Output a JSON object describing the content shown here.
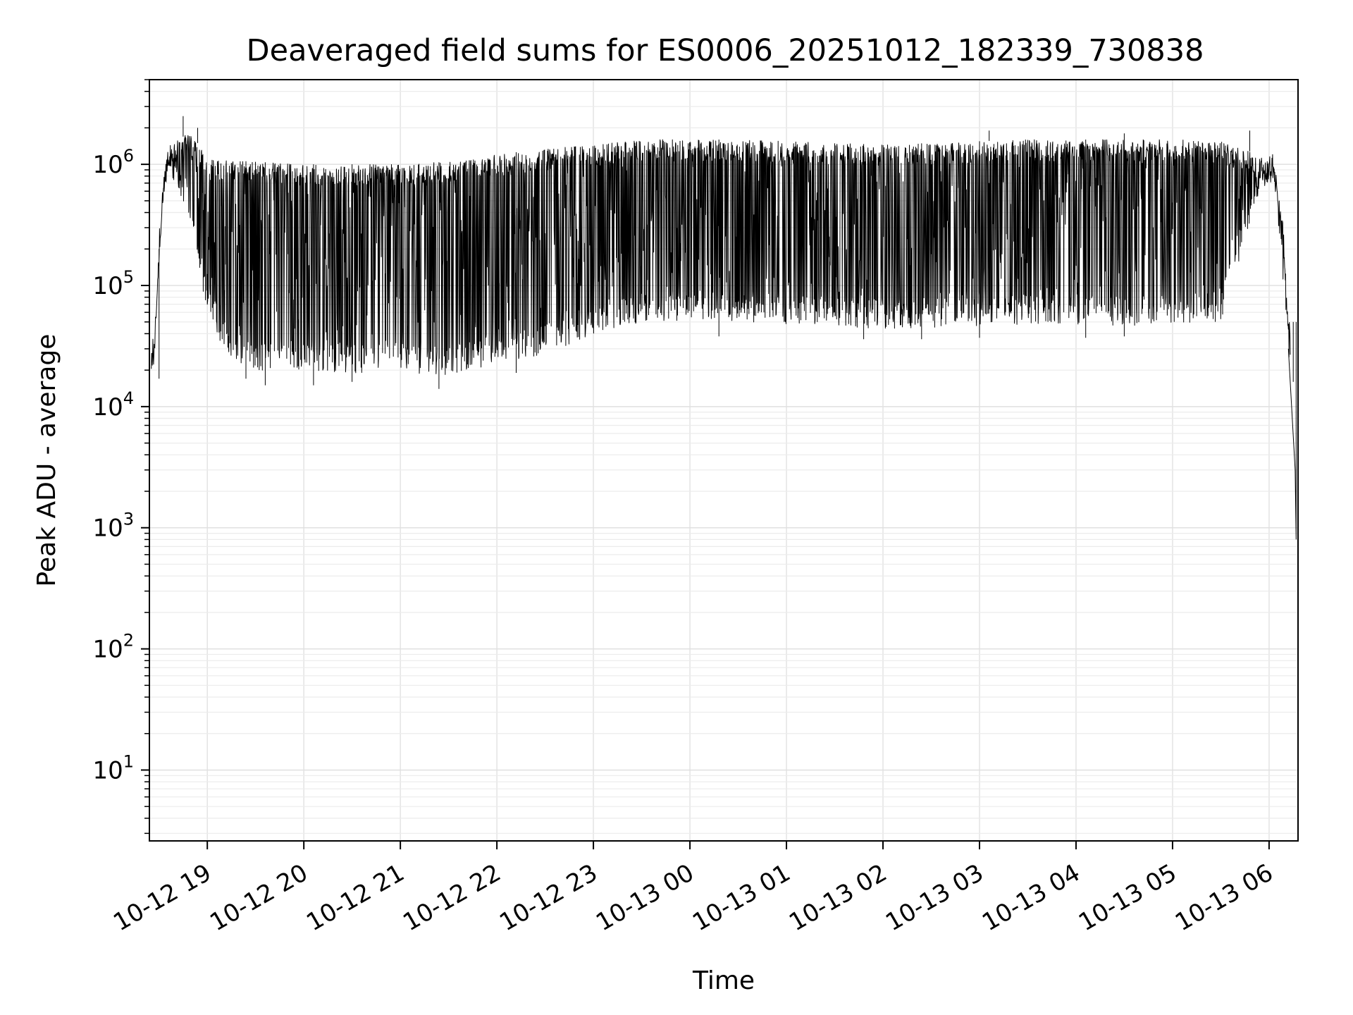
{
  "chart_data": {
    "type": "line",
    "title": "Deaveraged field sums for ES0006_20251012_182339_730838",
    "xlabel": "Time",
    "ylabel": "Peak ADU - average",
    "yscale": "log",
    "ylim": [
      2.6,
      5000000
    ],
    "ytick_values": [
      10,
      100,
      1000,
      10000,
      100000,
      1000000
    ],
    "ytick_labels": [
      {
        "base": "10",
        "exp": "1"
      },
      {
        "base": "10",
        "exp": "2"
      },
      {
        "base": "10",
        "exp": "3"
      },
      {
        "base": "10",
        "exp": "4"
      },
      {
        "base": "10",
        "exp": "5"
      },
      {
        "base": "10",
        "exp": "6"
      }
    ],
    "xlim_hours": [
      18.4,
      30.3
    ],
    "x_unit": "hours since 2025-10-12 00:00",
    "xticks": [
      {
        "value": 19,
        "label": "10-12 19"
      },
      {
        "value": 20,
        "label": "10-12 20"
      },
      {
        "value": 21,
        "label": "10-12 21"
      },
      {
        "value": 22,
        "label": "10-12 22"
      },
      {
        "value": 23,
        "label": "10-12 23"
      },
      {
        "value": 24,
        "label": "10-13 00"
      },
      {
        "value": 25,
        "label": "10-13 01"
      },
      {
        "value": 26,
        "label": "10-13 02"
      },
      {
        "value": 27,
        "label": "10-13 03"
      },
      {
        "value": 28,
        "label": "10-13 04"
      },
      {
        "value": 29,
        "label": "10-13 05"
      },
      {
        "value": 30,
        "label": "10-13 06"
      }
    ],
    "grid": true,
    "line_color": "#000000",
    "envelope": {
      "upper": [
        [
          18.45,
          30000
        ],
        [
          18.5,
          200000
        ],
        [
          18.55,
          800000
        ],
        [
          18.6,
          1400000
        ],
        [
          18.8,
          1800000
        ],
        [
          18.9,
          1500000
        ],
        [
          19.0,
          1100000
        ],
        [
          19.5,
          1050000
        ],
        [
          20.0,
          1000000
        ],
        [
          20.5,
          1000000
        ],
        [
          21.0,
          1000000
        ],
        [
          21.5,
          1050000
        ],
        [
          22.0,
          1200000
        ],
        [
          22.5,
          1350000
        ],
        [
          23.0,
          1450000
        ],
        [
          23.5,
          1600000
        ],
        [
          24.0,
          1600000
        ],
        [
          24.5,
          1600000
        ],
        [
          25.0,
          1550000
        ],
        [
          25.5,
          1500000
        ],
        [
          26.0,
          1450000
        ],
        [
          26.5,
          1500000
        ],
        [
          27.0,
          1550000
        ],
        [
          27.5,
          1600000
        ],
        [
          28.0,
          1600000
        ],
        [
          28.5,
          1600000
        ],
        [
          29.0,
          1600000
        ],
        [
          29.5,
          1550000
        ],
        [
          29.9,
          1200000
        ],
        [
          30.05,
          1000000
        ],
        [
          30.15,
          300000
        ],
        [
          30.2,
          50000
        ]
      ],
      "lower": [
        [
          18.45,
          25000
        ],
        [
          18.5,
          150000
        ],
        [
          18.55,
          600000
        ],
        [
          18.6,
          900000
        ],
        [
          18.8,
          400000
        ],
        [
          18.9,
          150000
        ],
        [
          19.0,
          60000
        ],
        [
          19.2,
          25000
        ],
        [
          19.5,
          20000
        ],
        [
          20.0,
          20000
        ],
        [
          20.5,
          19000
        ],
        [
          21.0,
          19000
        ],
        [
          21.5,
          18000
        ],
        [
          22.0,
          22000
        ],
        [
          22.5,
          27000
        ],
        [
          23.0,
          40000
        ],
        [
          23.5,
          50000
        ],
        [
          24.0,
          52000
        ],
        [
          24.5,
          50000
        ],
        [
          25.0,
          48000
        ],
        [
          25.5,
          46000
        ],
        [
          26.0,
          44000
        ],
        [
          26.5,
          45000
        ],
        [
          27.0,
          46000
        ],
        [
          27.5,
          48000
        ],
        [
          28.0,
          48000
        ],
        [
          28.5,
          46000
        ],
        [
          29.0,
          48000
        ],
        [
          29.5,
          50000
        ],
        [
          29.9,
          600000
        ],
        [
          30.05,
          800000
        ],
        [
          30.15,
          100000
        ],
        [
          30.2,
          25000
        ]
      ],
      "min_spikes_lower": [
        [
          18.5,
          17000
        ],
        [
          19.4,
          17000
        ],
        [
          19.6,
          15000
        ],
        [
          20.1,
          15000
        ],
        [
          20.5,
          16000
        ],
        [
          21.4,
          14000
        ],
        [
          22.2,
          19000
        ],
        [
          24.3,
          38000
        ],
        [
          25.8,
          36000
        ],
        [
          26.4,
          36000
        ],
        [
          27.0,
          37000
        ],
        [
          28.1,
          37000
        ],
        [
          28.5,
          38000
        ],
        [
          30.25,
          16000
        ],
        [
          30.28,
          800
        ]
      ],
      "max_spikes_upper": [
        [
          18.75,
          2500000
        ],
        [
          18.9,
          2000000
        ],
        [
          27.1,
          1900000
        ],
        [
          28.5,
          1800000
        ],
        [
          29.8,
          1900000
        ]
      ]
    }
  }
}
